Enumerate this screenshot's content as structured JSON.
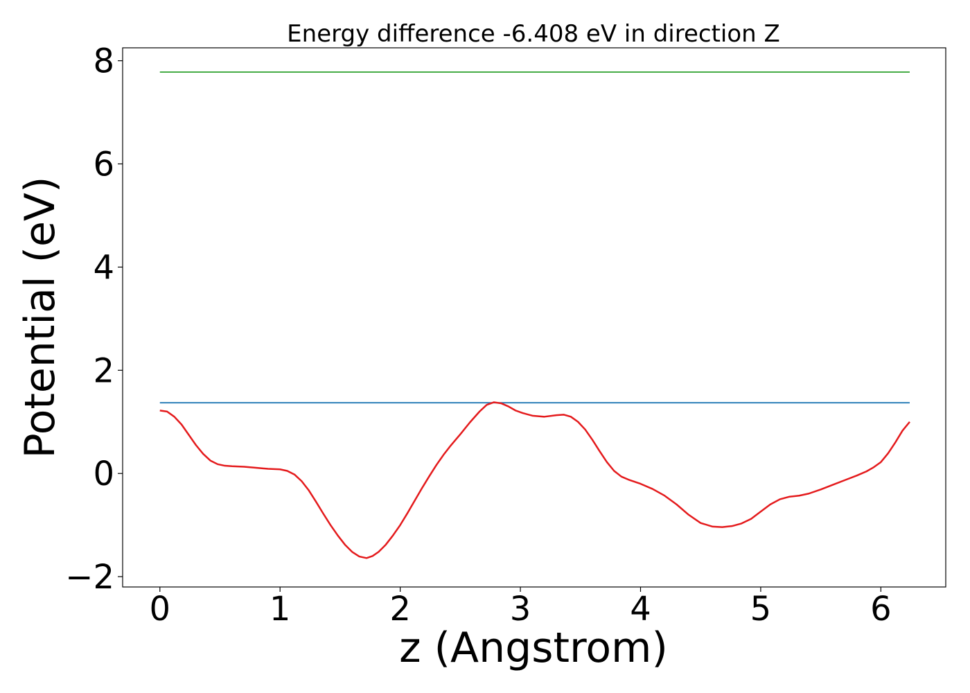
{
  "chart_data": {
    "type": "line",
    "title": "Energy difference -6.408 eV in direction Z",
    "xlabel": "z (Angstrom)",
    "ylabel": "Potential (eV)",
    "xlim": [
      -0.31,
      6.54
    ],
    "ylim": [
      -2.2,
      8.25
    ],
    "xticks": [
      0,
      1,
      2,
      3,
      4,
      5,
      6
    ],
    "xtick_labels": [
      "0",
      "1",
      "2",
      "3",
      "4",
      "5",
      "6"
    ],
    "yticks": [
      -2,
      0,
      2,
      4,
      6,
      8
    ],
    "ytick_labels": [
      "−2",
      "0",
      "2",
      "4",
      "6",
      "8"
    ],
    "grid": false,
    "series": [
      {
        "color": "#2ca02c",
        "x": [
          0,
          6.24
        ],
        "y": [
          7.78,
          7.78
        ]
      },
      {
        "color": "#1f77b4",
        "x": [
          0,
          6.24
        ],
        "y": [
          1.37,
          1.37
        ]
      },
      {
        "color": "#e41a1c",
        "x": [
          0.0,
          0.06,
          0.12,
          0.18,
          0.24,
          0.3,
          0.36,
          0.42,
          0.48,
          0.54,
          0.6,
          0.7,
          0.8,
          0.9,
          1.0,
          1.06,
          1.12,
          1.18,
          1.24,
          1.3,
          1.36,
          1.42,
          1.48,
          1.54,
          1.6,
          1.66,
          1.72,
          1.77,
          1.82,
          1.88,
          1.94,
          2.0,
          2.06,
          2.12,
          2.18,
          2.24,
          2.3,
          2.36,
          2.42,
          2.5,
          2.58,
          2.66,
          2.72,
          2.78,
          2.84,
          2.9,
          2.96,
          3.02,
          3.1,
          3.2,
          3.3,
          3.36,
          3.42,
          3.48,
          3.54,
          3.6,
          3.66,
          3.72,
          3.78,
          3.84,
          3.9,
          4.0,
          4.1,
          4.2,
          4.3,
          4.4,
          4.5,
          4.6,
          4.68,
          4.76,
          4.84,
          4.92,
          5.0,
          5.08,
          5.16,
          5.24,
          5.32,
          5.4,
          5.5,
          5.6,
          5.7,
          5.8,
          5.88,
          5.94,
          6.0,
          6.06,
          6.12,
          6.18,
          6.24
        ],
        "y": [
          1.22,
          1.2,
          1.1,
          0.95,
          0.75,
          0.55,
          0.38,
          0.25,
          0.18,
          0.15,
          0.14,
          0.13,
          0.11,
          0.09,
          0.08,
          0.05,
          -0.02,
          -0.15,
          -0.33,
          -0.55,
          -0.78,
          -1.0,
          -1.2,
          -1.38,
          -1.52,
          -1.61,
          -1.64,
          -1.6,
          -1.52,
          -1.38,
          -1.2,
          -1.0,
          -0.77,
          -0.53,
          -0.29,
          -0.06,
          0.16,
          0.36,
          0.54,
          0.76,
          0.99,
          1.2,
          1.33,
          1.38,
          1.36,
          1.3,
          1.22,
          1.17,
          1.12,
          1.1,
          1.13,
          1.14,
          1.1,
          1.0,
          0.85,
          0.65,
          0.43,
          0.22,
          0.05,
          -0.06,
          -0.12,
          -0.2,
          -0.3,
          -0.43,
          -0.6,
          -0.8,
          -0.96,
          -1.03,
          -1.04,
          -1.02,
          -0.97,
          -0.88,
          -0.74,
          -0.6,
          -0.5,
          -0.45,
          -0.43,
          -0.39,
          -0.31,
          -0.22,
          -0.13,
          -0.04,
          0.04,
          0.12,
          0.22,
          0.39,
          0.6,
          0.83,
          1.0
        ]
      }
    ]
  }
}
